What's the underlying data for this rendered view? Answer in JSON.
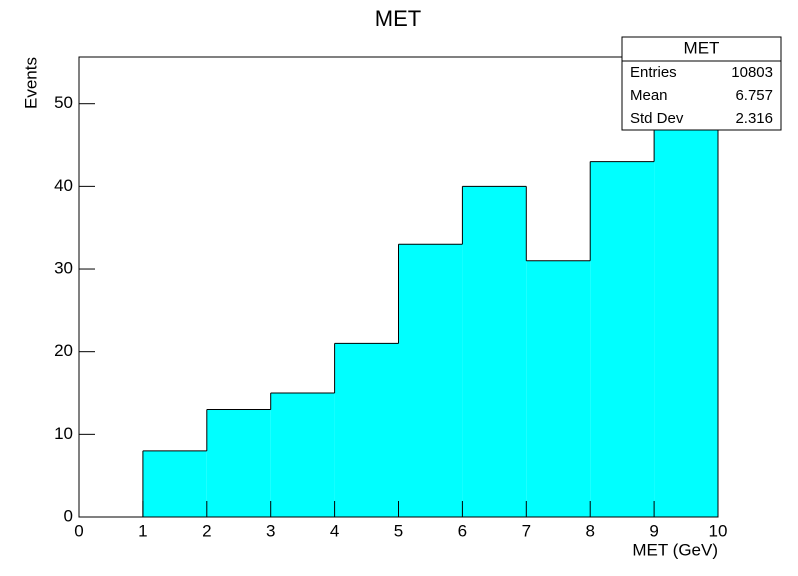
{
  "chart_data": {
    "type": "histogram",
    "title": "MET",
    "x_label": "MET (GeV)",
    "y_label": "Events",
    "bins": [
      0,
      1,
      2,
      3,
      4,
      5,
      6,
      7,
      8,
      9,
      10
    ],
    "counts": [
      0,
      8,
      13,
      15,
      21,
      33,
      40,
      31,
      43,
      53
    ],
    "color": "#00ffff",
    "xlim": [
      0,
      10
    ],
    "ylim": [
      0,
      55.65
    ],
    "xticks": [
      0,
      1,
      2,
      3,
      4,
      5,
      6,
      7,
      8,
      9,
      10
    ],
    "yticks": [
      0,
      10,
      20,
      30,
      40,
      50
    ],
    "stats": {
      "title": "MET",
      "rows": [
        [
          "Entries",
          10803
        ],
        [
          "Mean",
          6.757
        ],
        [
          "Std Dev",
          2.316
        ]
      ]
    }
  }
}
